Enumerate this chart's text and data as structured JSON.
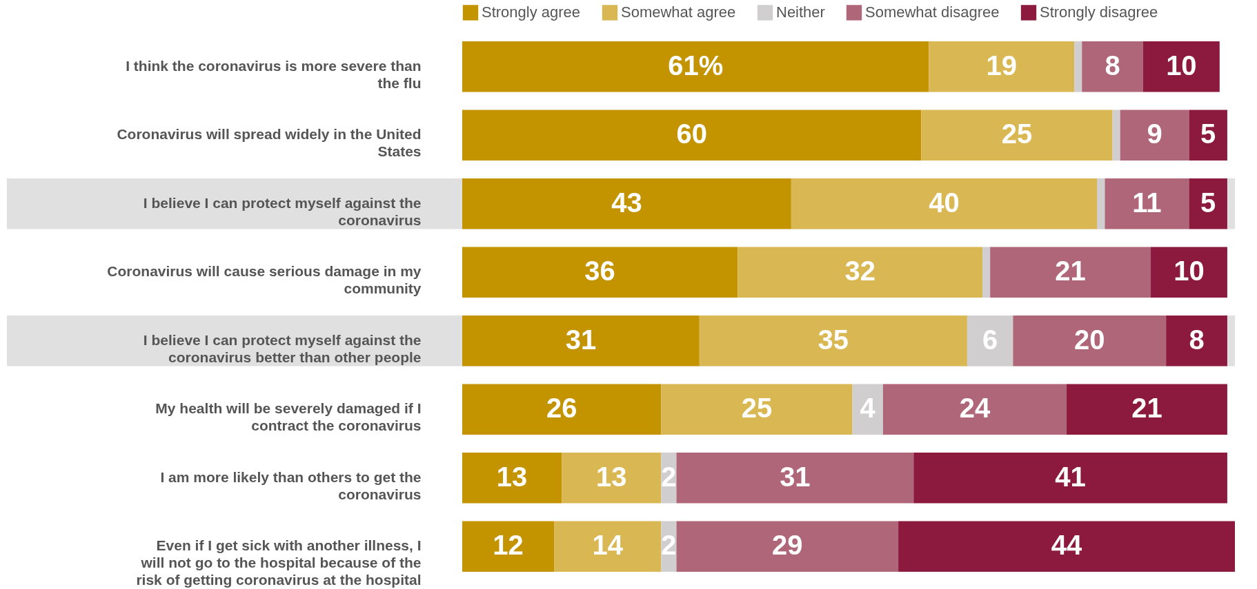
{
  "chart_data": {
    "type": "bar",
    "orientation": "horizontal",
    "stacked": true,
    "legend": "top",
    "categories": [
      "I think the coronavirus is more severe than the flu",
      "Coronavirus will spread widely in the United States",
      "I believe I can protect myself against the coronavirus",
      "Coronavirus will cause serious damage in my community",
      "I believe I can protect myself against the coronavirus better than other people",
      "My health will be severely damaged if I contract the coronavirus",
      "I am more likely than others to get the coronavirus",
      "Even if I get sick with another illness, I will not go to the hospital because of the risk of getting coronavirus at the hospital"
    ],
    "series": [
      {
        "name": "Strongly agree",
        "color": "#c49400",
        "values": [
          61,
          60,
          43,
          36,
          31,
          26,
          13,
          12
        ],
        "value_labels": [
          "61%",
          "60",
          "43",
          "36",
          "31",
          "26",
          "13",
          "12"
        ]
      },
      {
        "name": "Somewhat agree",
        "color": "#d9b752",
        "values": [
          19,
          25,
          40,
          32,
          35,
          25,
          13,
          14
        ],
        "value_labels": [
          "19",
          "25",
          "40",
          "32",
          "35",
          "25",
          "13",
          "14"
        ]
      },
      {
        "name": "Neither",
        "color": "#d0cece",
        "values": [
          1,
          1,
          1,
          1,
          6,
          4,
          2,
          2
        ],
        "value_labels": [
          null,
          null,
          null,
          null,
          "6",
          "4",
          "2",
          "2"
        ]
      },
      {
        "name": "Somewhat disagree",
        "color": "#b06679",
        "values": [
          8,
          9,
          11,
          21,
          20,
          24,
          31,
          29
        ],
        "value_labels": [
          "8",
          "9",
          "11",
          "21",
          "20",
          "24",
          "31",
          "29"
        ]
      },
      {
        "name": "Strongly disagree",
        "color": "#8b1a3e",
        "values": [
          10,
          5,
          5,
          10,
          8,
          21,
          41,
          44
        ],
        "value_labels": [
          "10",
          "5",
          "5",
          "10",
          "8",
          "21",
          "41",
          "44"
        ]
      }
    ],
    "bands": [
      {
        "axis": "y",
        "from": "I believe I can protect myself against the coronavirus",
        "to": "I believe I can protect myself against the coronavirus",
        "color": "#e0e0e0"
      },
      {
        "axis": "y",
        "from": "I believe I can protect myself against the coronavirus better than other people",
        "to": "I believe I can protect myself against the coronavirus better than other people",
        "color": "#e0e0e0"
      }
    ],
    "legend_title": null
  }
}
